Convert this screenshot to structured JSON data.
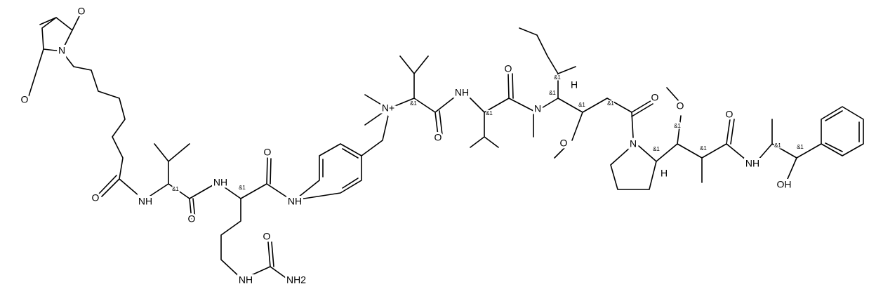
{
  "atom_labels": [
    "O",
    "N",
    "O",
    "O",
    "NH",
    "NH",
    "O",
    "O",
    "NH",
    "NH",
    "O",
    "NH2",
    "N+",
    "O",
    "NH",
    "O",
    "N",
    "H",
    "O",
    "O",
    "N",
    "H",
    "O",
    "O",
    "NH",
    "OH"
  ],
  "stereo_labels": [
    "&1",
    "&1",
    "&1",
    "&1",
    "&1",
    "&1",
    "&1",
    "&1",
    "&1",
    "&1",
    "&1",
    "&1",
    "&1"
  ]
}
